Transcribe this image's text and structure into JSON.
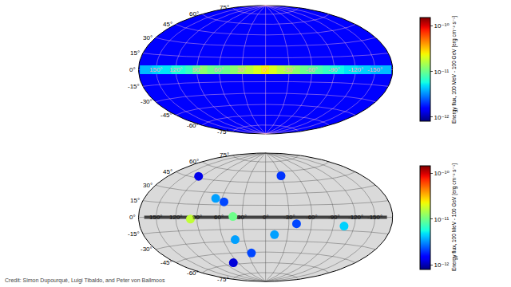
{
  "credit": "Credit: Simon Dupourqué, Luigi Tibaldo, and Peter von Ballmoos",
  "chart_data": [
    {
      "type": "map",
      "log": true,
      "grid": true,
      "background_flux": 1.5e-12,
      "plane": {
        "lon": [
          170,
          160,
          150,
          140,
          130,
          120,
          110,
          100,
          90,
          80,
          70,
          60,
          50,
          40,
          30,
          20,
          10,
          0,
          -10,
          -20,
          -30,
          -40,
          -50,
          -60,
          -70,
          -80,
          -90,
          -100,
          -110,
          -120,
          -130,
          -140,
          -150,
          -160,
          -170
        ],
        "flux": [
          4e-12,
          4e-12,
          4.5e-12,
          5e-12,
          5e-12,
          6e-12,
          6e-12,
          7e-12,
          9e-12,
          1.2e-11,
          1e-11,
          9e-12,
          1e-11,
          1.2e-11,
          1.4e-11,
          1.6e-11,
          2e-11,
          2.5e-11,
          2e-11,
          1.6e-11,
          1.4e-11,
          1.2e-11,
          1e-11,
          9e-12,
          8e-12,
          7e-12,
          6e-12,
          5.5e-12,
          5e-12,
          5e-12,
          4.5e-12,
          4.5e-12,
          4e-12,
          4e-12,
          4e-12
        ]
      },
      "lon_ticks": [
        {
          "value": 150,
          "label": "150°"
        },
        {
          "value": 120,
          "label": "120°"
        },
        {
          "value": 90,
          "label": "90°"
        },
        {
          "value": 60,
          "label": "60°"
        },
        {
          "value": 30,
          "label": "30°"
        },
        {
          "value": 0,
          "label": "0°"
        },
        {
          "value": -30,
          "label": "-30°"
        },
        {
          "value": -60,
          "label": "-60°"
        },
        {
          "value": -90,
          "label": "-90°"
        },
        {
          "value": -120,
          "label": "-120°"
        },
        {
          "value": -150,
          "label": "-150°"
        }
      ],
      "lat_ticks": [
        {
          "value": 75,
          "label": "75°"
        },
        {
          "value": 60,
          "label": "60°"
        },
        {
          "value": 45,
          "label": "45°"
        },
        {
          "value": 30,
          "label": "30°"
        },
        {
          "value": 15,
          "label": "15°"
        },
        {
          "value": 0,
          "label": "0°"
        },
        {
          "value": -15,
          "label": "-15°"
        },
        {
          "value": -30,
          "label": "-30°"
        },
        {
          "value": -45,
          "label": "-45°"
        },
        {
          "value": -60,
          "label": "-60°"
        },
        {
          "value": -75,
          "label": "-75°"
        }
      ],
      "colorbar": {
        "title": "Energy flux, 100 MeV - 100 GeV [erg cm⁻² s⁻¹]",
        "range": [
          8e-13,
          1.5e-10
        ],
        "ticks": [
          {
            "value": 1e-12,
            "label": "10⁻¹²"
          },
          {
            "value": 1e-11,
            "label": "10⁻¹¹"
          },
          {
            "value": 1e-10,
            "label": "10⁻¹⁰"
          }
        ]
      }
    },
    {
      "type": "scatter",
      "log": true,
      "grid": true,
      "sources": {
        "lon": [
          125,
          -30,
          69,
          56,
          99,
          42,
          43,
          24,
          70,
          -12,
          -40,
          -105
        ],
        "lat": [
          47,
          54,
          23,
          19,
          -2,
          1,
          -28,
          -46,
          -58,
          -22,
          -8,
          -10
        ],
        "flux": [
          1.3e-12,
          2e-12,
          3.5e-12,
          2.2e-12,
          1.7e-11,
          1e-11,
          3.5e-12,
          2.2e-12,
          1.2e-12,
          3.5e-12,
          2.2e-12,
          4.5e-12
        ]
      },
      "lon_ticks": [
        {
          "value": 150,
          "label": "150°"
        },
        {
          "value": 120,
          "label": "120°"
        },
        {
          "value": 90,
          "label": "90°"
        },
        {
          "value": 60,
          "label": "60°"
        },
        {
          "value": 30,
          "label": "30°"
        },
        {
          "value": 0,
          "label": "0°"
        },
        {
          "value": -30,
          "label": "-30°"
        },
        {
          "value": -60,
          "label": "-60°"
        },
        {
          "value": -90,
          "label": "-90°"
        },
        {
          "value": -120,
          "label": "-120°"
        },
        {
          "value": -150,
          "label": "-150°"
        }
      ],
      "lat_ticks": [
        {
          "value": 75,
          "label": "75°"
        },
        {
          "value": 60,
          "label": "60°"
        },
        {
          "value": 45,
          "label": "45°"
        },
        {
          "value": 30,
          "label": "30°"
        },
        {
          "value": 15,
          "label": "15°"
        },
        {
          "value": 0,
          "label": "0°"
        },
        {
          "value": -15,
          "label": "-15°"
        },
        {
          "value": -30,
          "label": "-30°"
        },
        {
          "value": -45,
          "label": "-45°"
        },
        {
          "value": -60,
          "label": "-60°"
        },
        {
          "value": -75,
          "label": "-75°"
        }
      ],
      "colorbar": {
        "title": "Energy flux, 100 MeV - 100 GeV [erg cm⁻² s⁻¹]",
        "range": [
          8e-13,
          1.5e-10
        ],
        "ticks": [
          {
            "value": 1e-12,
            "label": "10⁻¹²"
          },
          {
            "value": 1e-11,
            "label": "10⁻¹¹"
          },
          {
            "value": 1e-10,
            "label": "10⁻¹⁰"
          }
        ]
      }
    }
  ]
}
